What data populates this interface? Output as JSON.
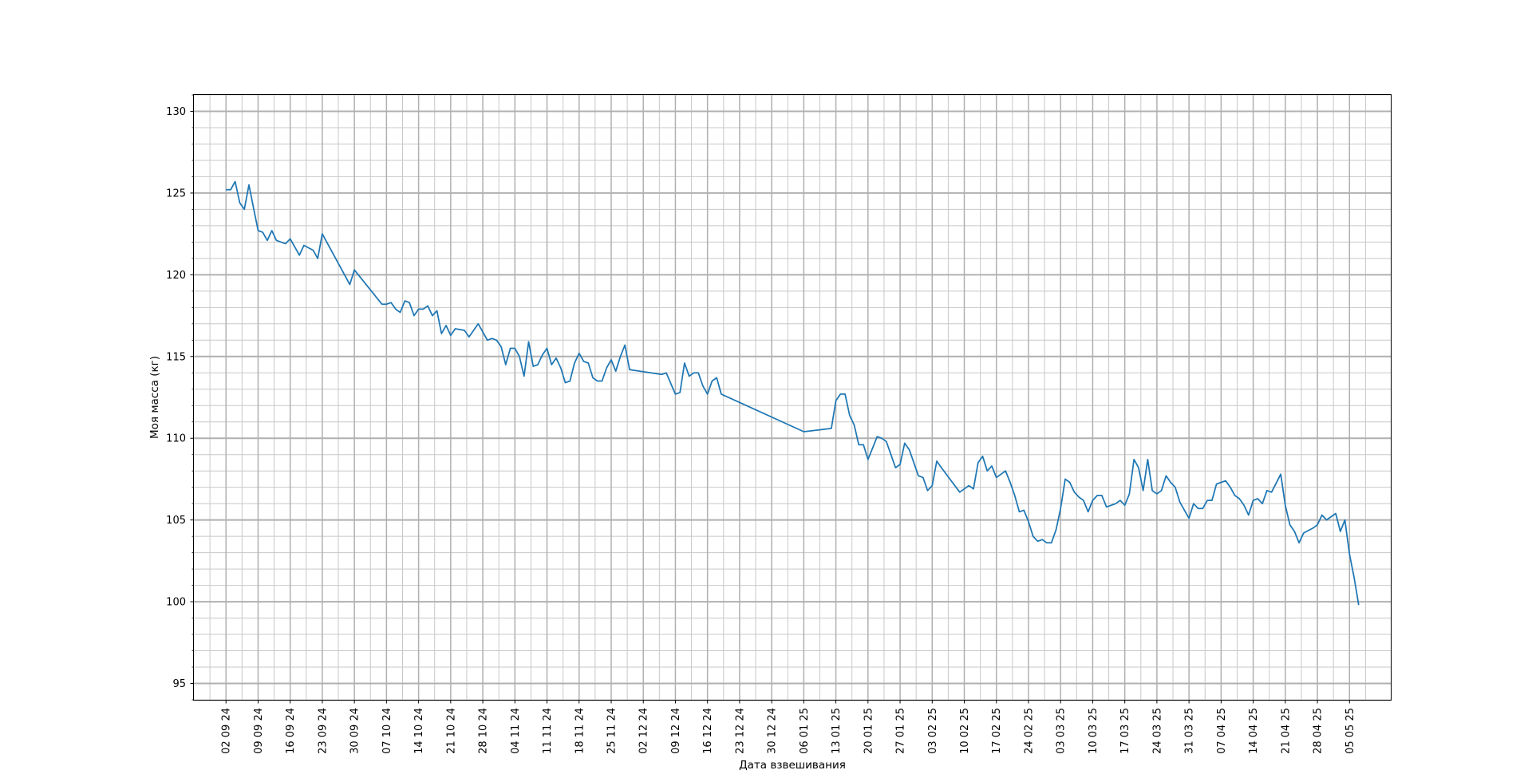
{
  "chart_data": {
    "type": "line",
    "title": "",
    "xlabel": "Дата взвешивания",
    "ylabel": "Моя масса (кг)",
    "ylim": [
      94,
      131
    ],
    "xlim": [
      "2024-08-26",
      "2025-05-14"
    ],
    "grid": true,
    "legend": "none",
    "colors": {
      "line": "#1f77b4",
      "major_grid": "#b0b0b0",
      "minor_grid": "#c8c8c8"
    },
    "y_ticks": [
      95,
      100,
      105,
      110,
      115,
      120,
      125,
      130
    ],
    "x_ticks": [
      {
        "date": "2024-09-02",
        "label": "02 09 24"
      },
      {
        "date": "2024-09-09",
        "label": "09 09 24"
      },
      {
        "date": "2024-09-16",
        "label": "16 09 24"
      },
      {
        "date": "2024-09-23",
        "label": "23 09 24"
      },
      {
        "date": "2024-09-30",
        "label": "30 09 24"
      },
      {
        "date": "2024-10-07",
        "label": "07 10 24"
      },
      {
        "date": "2024-10-14",
        "label": "14 10 24"
      },
      {
        "date": "2024-10-21",
        "label": "21 10 24"
      },
      {
        "date": "2024-10-28",
        "label": "28 10 24"
      },
      {
        "date": "2024-11-04",
        "label": "04 11 24"
      },
      {
        "date": "2024-11-11",
        "label": "11 11 24"
      },
      {
        "date": "2024-11-18",
        "label": "18 11 24"
      },
      {
        "date": "2024-11-25",
        "label": "25 11 24"
      },
      {
        "date": "2024-12-02",
        "label": "02 12 24"
      },
      {
        "date": "2024-12-09",
        "label": "09 12 24"
      },
      {
        "date": "2024-12-16",
        "label": "16 12 24"
      },
      {
        "date": "2024-12-23",
        "label": "23 12 24"
      },
      {
        "date": "2024-12-30",
        "label": "30 12 24"
      },
      {
        "date": "2025-01-06",
        "label": "06 01 25"
      },
      {
        "date": "2025-01-13",
        "label": "13 01 25"
      },
      {
        "date": "2025-01-20",
        "label": "20 01 25"
      },
      {
        "date": "2025-01-27",
        "label": "27 01 25"
      },
      {
        "date": "2025-02-03",
        "label": "03 02 25"
      },
      {
        "date": "2025-02-10",
        "label": "10 02 25"
      },
      {
        "date": "2025-02-17",
        "label": "17 02 25"
      },
      {
        "date": "2025-02-24",
        "label": "24 02 25"
      },
      {
        "date": "2025-03-03",
        "label": "03 03 25"
      },
      {
        "date": "2025-03-10",
        "label": "10 03 25"
      },
      {
        "date": "2025-03-17",
        "label": "17 03 25"
      },
      {
        "date": "2025-03-24",
        "label": "24 03 25"
      },
      {
        "date": "2025-03-31",
        "label": "31 03 25"
      },
      {
        "date": "2025-04-07",
        "label": "07 04 25"
      },
      {
        "date": "2025-04-14",
        "label": "14 04 25"
      },
      {
        "date": "2025-04-21",
        "label": "21 04 25"
      },
      {
        "date": "2025-04-28",
        "label": "28 04 25"
      },
      {
        "date": "2025-05-05",
        "label": "05 05 25"
      }
    ],
    "series": [
      {
        "points": [
          [
            "2024-09-02",
            125.2
          ],
          [
            "2024-09-03",
            125.2
          ],
          [
            "2024-09-04",
            125.7
          ],
          [
            "2024-09-05",
            124.4
          ],
          [
            "2024-09-06",
            124.0
          ],
          [
            "2024-09-07",
            125.5
          ],
          [
            "2024-09-08",
            124.1
          ],
          [
            "2024-09-09",
            122.7
          ],
          [
            "2024-09-10",
            122.6
          ],
          [
            "2024-09-11",
            122.1
          ],
          [
            "2024-09-12",
            122.7
          ],
          [
            "2024-09-13",
            122.1
          ],
          [
            "2024-09-15",
            121.9
          ],
          [
            "2024-09-16",
            122.2
          ],
          [
            "2024-09-18",
            121.2
          ],
          [
            "2024-09-19",
            121.8
          ],
          [
            "2024-09-21",
            121.5
          ],
          [
            "2024-09-22",
            121.0
          ],
          [
            "2024-09-23",
            122.5
          ],
          [
            "2024-09-29",
            119.4
          ],
          [
            "2024-09-30",
            120.3
          ],
          [
            "2024-10-06",
            118.2
          ],
          [
            "2024-10-07",
            118.2
          ],
          [
            "2024-10-08",
            118.3
          ],
          [
            "2024-10-09",
            117.9
          ],
          [
            "2024-10-10",
            117.7
          ],
          [
            "2024-10-11",
            118.4
          ],
          [
            "2024-10-12",
            118.3
          ],
          [
            "2024-10-13",
            117.5
          ],
          [
            "2024-10-14",
            117.9
          ],
          [
            "2024-10-15",
            117.9
          ],
          [
            "2024-10-16",
            118.1
          ],
          [
            "2024-10-17",
            117.5
          ],
          [
            "2024-10-18",
            117.8
          ],
          [
            "2024-10-19",
            116.4
          ],
          [
            "2024-10-20",
            116.9
          ],
          [
            "2024-10-21",
            116.3
          ],
          [
            "2024-10-22",
            116.7
          ],
          [
            "2024-10-24",
            116.6
          ],
          [
            "2024-10-25",
            116.2
          ],
          [
            "2024-10-27",
            117.0
          ],
          [
            "2024-10-28",
            116.5
          ],
          [
            "2024-10-29",
            116.0
          ],
          [
            "2024-10-30",
            116.1
          ],
          [
            "2024-10-31",
            116.0
          ],
          [
            "2024-11-01",
            115.6
          ],
          [
            "2024-11-02",
            114.5
          ],
          [
            "2024-11-03",
            115.5
          ],
          [
            "2024-11-04",
            115.5
          ],
          [
            "2024-11-05",
            115.0
          ],
          [
            "2024-11-06",
            113.8
          ],
          [
            "2024-11-07",
            115.9
          ],
          [
            "2024-11-08",
            114.4
          ],
          [
            "2024-11-09",
            114.5
          ],
          [
            "2024-11-10",
            115.1
          ],
          [
            "2024-11-11",
            115.5
          ],
          [
            "2024-11-12",
            114.5
          ],
          [
            "2024-11-13",
            114.9
          ],
          [
            "2024-11-14",
            114.3
          ],
          [
            "2024-11-15",
            113.4
          ],
          [
            "2024-11-16",
            113.5
          ],
          [
            "2024-11-17",
            114.6
          ],
          [
            "2024-11-18",
            115.2
          ],
          [
            "2024-11-19",
            114.7
          ],
          [
            "2024-11-20",
            114.6
          ],
          [
            "2024-11-21",
            113.7
          ],
          [
            "2024-11-22",
            113.5
          ],
          [
            "2024-11-23",
            113.5
          ],
          [
            "2024-11-24",
            114.3
          ],
          [
            "2024-11-25",
            114.8
          ],
          [
            "2024-11-26",
            114.1
          ],
          [
            "2024-11-27",
            115.0
          ],
          [
            "2024-11-28",
            115.7
          ],
          [
            "2024-11-29",
            114.2
          ],
          [
            "2024-12-06",
            113.9
          ],
          [
            "2024-12-07",
            114.0
          ],
          [
            "2024-12-09",
            112.7
          ],
          [
            "2024-12-10",
            112.8
          ],
          [
            "2024-12-11",
            114.6
          ],
          [
            "2024-12-12",
            113.8
          ],
          [
            "2024-12-13",
            114.0
          ],
          [
            "2024-12-14",
            114.0
          ],
          [
            "2024-12-15",
            113.2
          ],
          [
            "2024-12-16",
            112.7
          ],
          [
            "2024-12-17",
            113.5
          ],
          [
            "2024-12-18",
            113.7
          ],
          [
            "2024-12-19",
            112.7
          ],
          [
            "2025-01-06",
            110.4
          ],
          [
            "2025-01-12",
            110.6
          ],
          [
            "2025-01-13",
            112.3
          ],
          [
            "2025-01-14",
            112.7
          ],
          [
            "2025-01-15",
            112.7
          ],
          [
            "2025-01-16",
            111.4
          ],
          [
            "2025-01-17",
            110.8
          ],
          [
            "2025-01-18",
            109.6
          ],
          [
            "2025-01-19",
            109.6
          ],
          [
            "2025-01-20",
            108.7
          ],
          [
            "2025-01-21",
            109.4
          ],
          [
            "2025-01-22",
            110.1
          ],
          [
            "2025-01-23",
            110.0
          ],
          [
            "2025-01-24",
            109.8
          ],
          [
            "2025-01-25",
            109.0
          ],
          [
            "2025-01-26",
            108.2
          ],
          [
            "2025-01-27",
            108.4
          ],
          [
            "2025-01-28",
            109.7
          ],
          [
            "2025-01-29",
            109.3
          ],
          [
            "2025-01-30",
            108.5
          ],
          [
            "2025-01-31",
            107.7
          ],
          [
            "2025-02-01",
            107.6
          ],
          [
            "2025-02-02",
            106.8
          ],
          [
            "2025-02-03",
            107.1
          ],
          [
            "2025-02-04",
            108.6
          ],
          [
            "2025-02-05",
            108.2
          ],
          [
            "2025-02-09",
            106.7
          ],
          [
            "2025-02-11",
            107.1
          ],
          [
            "2025-02-12",
            106.9
          ],
          [
            "2025-02-13",
            108.5
          ],
          [
            "2025-02-14",
            108.9
          ],
          [
            "2025-02-15",
            108.0
          ],
          [
            "2025-02-16",
            108.3
          ],
          [
            "2025-02-17",
            107.6
          ],
          [
            "2025-02-19",
            108.0
          ],
          [
            "2025-02-20",
            107.3
          ],
          [
            "2025-02-21",
            106.5
          ],
          [
            "2025-02-22",
            105.5
          ],
          [
            "2025-02-23",
            105.6
          ],
          [
            "2025-02-24",
            104.9
          ],
          [
            "2025-02-25",
            104.0
          ],
          [
            "2025-02-26",
            103.7
          ],
          [
            "2025-02-27",
            103.8
          ],
          [
            "2025-02-28",
            103.6
          ],
          [
            "2025-03-01",
            103.6
          ],
          [
            "2025-03-02",
            104.4
          ],
          [
            "2025-03-03",
            105.7
          ],
          [
            "2025-03-04",
            107.5
          ],
          [
            "2025-03-05",
            107.3
          ],
          [
            "2025-03-06",
            106.7
          ],
          [
            "2025-03-07",
            106.4
          ],
          [
            "2025-03-08",
            106.2
          ],
          [
            "2025-03-09",
            105.5
          ],
          [
            "2025-03-10",
            106.2
          ],
          [
            "2025-03-11",
            106.5
          ],
          [
            "2025-03-12",
            106.5
          ],
          [
            "2025-03-13",
            105.8
          ],
          [
            "2025-03-15",
            106.0
          ],
          [
            "2025-03-16",
            106.2
          ],
          [
            "2025-03-17",
            105.9
          ],
          [
            "2025-03-18",
            106.6
          ],
          [
            "2025-03-19",
            108.7
          ],
          [
            "2025-03-20",
            108.2
          ],
          [
            "2025-03-21",
            106.8
          ],
          [
            "2025-03-22",
            108.7
          ],
          [
            "2025-03-23",
            106.8
          ],
          [
            "2025-03-24",
            106.6
          ],
          [
            "2025-03-25",
            106.8
          ],
          [
            "2025-03-26",
            107.7
          ],
          [
            "2025-03-27",
            107.3
          ],
          [
            "2025-03-28",
            107.0
          ],
          [
            "2025-03-29",
            106.1
          ],
          [
            "2025-03-30",
            105.6
          ],
          [
            "2025-03-31",
            105.1
          ],
          [
            "2025-04-01",
            106.0
          ],
          [
            "2025-04-02",
            105.7
          ],
          [
            "2025-04-03",
            105.7
          ],
          [
            "2025-04-04",
            106.2
          ],
          [
            "2025-04-05",
            106.2
          ],
          [
            "2025-04-06",
            107.2
          ],
          [
            "2025-04-08",
            107.4
          ],
          [
            "2025-04-09",
            107.0
          ],
          [
            "2025-04-10",
            106.5
          ],
          [
            "2025-04-11",
            106.3
          ],
          [
            "2025-04-12",
            105.9
          ],
          [
            "2025-04-13",
            105.3
          ],
          [
            "2025-04-14",
            106.2
          ],
          [
            "2025-04-15",
            106.3
          ],
          [
            "2025-04-16",
            106.0
          ],
          [
            "2025-04-17",
            106.8
          ],
          [
            "2025-04-18",
            106.7
          ],
          [
            "2025-04-20",
            107.8
          ],
          [
            "2025-04-21",
            105.9
          ],
          [
            "2025-04-22",
            104.7
          ],
          [
            "2025-04-23",
            104.3
          ],
          [
            "2025-04-24",
            103.6
          ],
          [
            "2025-04-25",
            104.2
          ],
          [
            "2025-04-27",
            104.5
          ],
          [
            "2025-04-28",
            104.7
          ],
          [
            "2025-04-29",
            105.3
          ],
          [
            "2025-04-30",
            105.0
          ],
          [
            "2025-05-02",
            105.4
          ],
          [
            "2025-05-03",
            104.3
          ],
          [
            "2025-05-04",
            105.0
          ],
          [
            "2025-05-05",
            102.9
          ],
          [
            "2025-05-06",
            101.5
          ],
          [
            "2025-05-07",
            99.8
          ]
        ]
      }
    ]
  }
}
